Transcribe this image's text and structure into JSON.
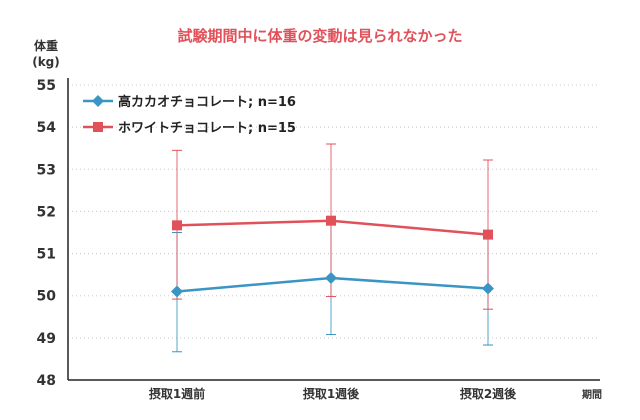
{
  "chart_data": {
    "type": "line",
    "title": "試験期間中に体重の変動は見られなかった",
    "ylabel_line1": "体重",
    "ylabel_line2": "(kg)",
    "xlabel": "期間",
    "categories": [
      "摂取1週前",
      "摂取1週後",
      "摂取2週後"
    ],
    "ylim": [
      48,
      55
    ],
    "yticks": [
      48,
      49,
      50,
      51,
      52,
      53,
      54,
      55
    ],
    "grid": "horizontal dotted",
    "legend_position": "top-left",
    "series": [
      {
        "name": "高カカオチョコレート; n=16",
        "marker": "diamond",
        "color": "#3a95c4",
        "values": [
          50.1,
          50.42,
          50.17
        ],
        "err_low": [
          48.67,
          49.08,
          48.83
        ],
        "err_high": [
          51.5,
          51.7,
          51.5
        ]
      },
      {
        "name": "ホワイトチョコレート; n=15",
        "marker": "square",
        "color": "#e0515a",
        "values": [
          51.67,
          51.78,
          51.45
        ],
        "err_low": [
          49.92,
          49.98,
          49.68
        ],
        "err_high": [
          53.45,
          53.6,
          53.22
        ]
      }
    ],
    "title_color": "#e0515a"
  }
}
